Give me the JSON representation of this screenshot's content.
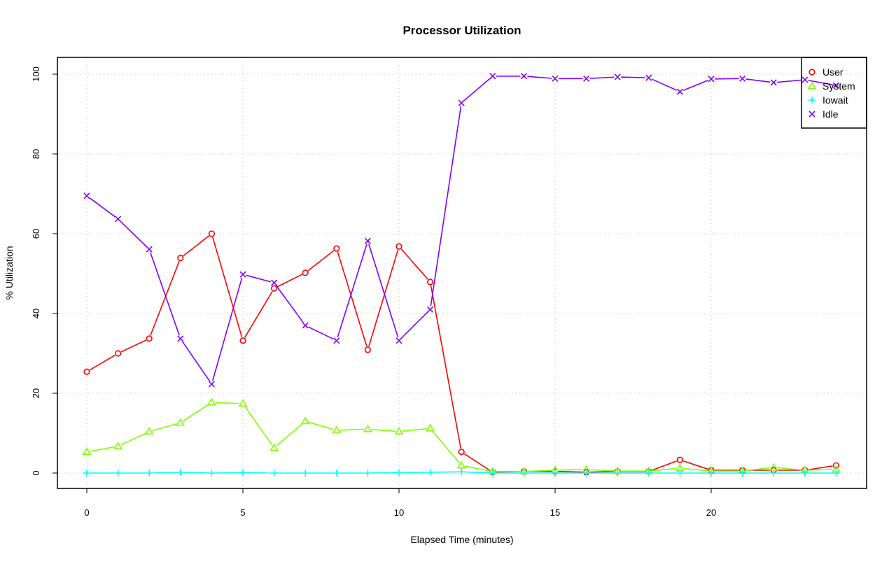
{
  "chart_data": {
    "type": "line",
    "title": "Processor Utilization",
    "xlabel": "Elapsed Time (minutes)",
    "ylabel": "% Utilization",
    "xlim": [
      -1,
      25
    ],
    "ylim": [
      -4,
      104
    ],
    "xticks": [
      0,
      5,
      10,
      15,
      20
    ],
    "yticks": [
      0,
      20,
      40,
      60,
      80,
      100
    ],
    "grid": true,
    "legend_position": "top-right",
    "x": [
      0,
      1,
      2,
      3,
      4,
      5,
      6,
      7,
      8,
      9,
      10,
      11,
      12,
      13,
      14,
      15,
      16,
      17,
      18,
      19,
      20,
      21,
      22,
      23,
      24
    ],
    "series": [
      {
        "name": "User",
        "color": "#ff0000",
        "marker": "circle",
        "values": [
          25.4,
          30,
          33.7,
          53.9,
          60,
          33.2,
          46.3,
          50.2,
          56.3,
          30.9,
          56.8,
          47.9,
          5.3,
          0.2,
          0.4,
          0.4,
          0.2,
          0.4,
          0.4,
          3.3,
          0.7,
          0.7,
          0.7,
          0.7,
          1.9
        ]
      },
      {
        "name": "System",
        "color": "#80ff00",
        "marker": "triangle",
        "values": [
          5.3,
          6.7,
          10.4,
          12.6,
          17.7,
          17.4,
          6.3,
          13,
          10.7,
          11,
          10.4,
          11.2,
          1.9,
          0.4,
          0.4,
          0.7,
          0.9,
          0.5,
          0.5,
          1.2,
          0.5,
          0.5,
          1.4,
          0.7,
          0.9
        ]
      },
      {
        "name": "Iowait",
        "color": "#00ffff",
        "marker": "plus",
        "values": [
          0,
          0,
          0,
          0.2,
          0,
          0.1,
          0,
          0,
          0,
          0,
          0.1,
          0.2,
          0.3,
          0,
          0,
          0,
          0,
          0,
          0,
          0,
          0,
          0,
          0,
          0,
          0
        ]
      },
      {
        "name": "Idle",
        "color": "#8000ff",
        "marker": "cross",
        "values": [
          69.5,
          63.7,
          56.1,
          33.7,
          22.3,
          49.8,
          47.7,
          37,
          33.2,
          58.2,
          33.2,
          41,
          92.8,
          99.5,
          99.5,
          98.9,
          98.9,
          99.3,
          99.1,
          95.6,
          98.8,
          98.9,
          97.9,
          98.6,
          97.2
        ]
      }
    ]
  }
}
